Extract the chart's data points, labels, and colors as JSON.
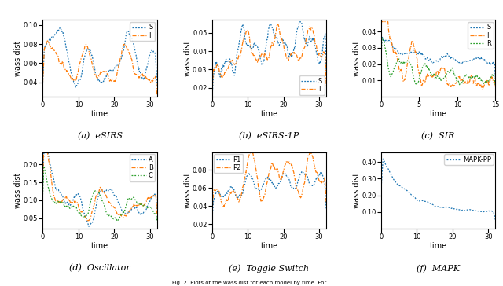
{
  "subplots": [
    {
      "label": "(a)  eSIRS",
      "xlabel": "time",
      "ylabel": "wass dist",
      "xlim": [
        0,
        32
      ],
      "ylim": [
        0.025,
        0.105
      ],
      "yticks": [
        0.04,
        0.06,
        0.08,
        0.1
      ],
      "xticks": [
        0,
        10,
        20,
        30
      ],
      "legend_loc": "upper right",
      "series": [
        {
          "name": "S",
          "color": "#1f77b4",
          "ls": "dotted"
        },
        {
          "name": "I",
          "color": "#ff7f0e",
          "ls": "dashdot"
        }
      ]
    },
    {
      "label": "(b)  eSIRS-1P",
      "xlabel": "time",
      "ylabel": "wass dist",
      "xlim": [
        0,
        32
      ],
      "ylim": [
        0.015,
        0.057
      ],
      "yticks": [
        0.02,
        0.03,
        0.04,
        0.05
      ],
      "xticks": [
        0,
        10,
        20,
        30
      ],
      "legend_loc": "lower right",
      "series": [
        {
          "name": "S",
          "color": "#1f77b4",
          "ls": "dotted"
        },
        {
          "name": "I",
          "color": "#ff7f0e",
          "ls": "dashdot"
        }
      ]
    },
    {
      "label": "(c)  SIR",
      "xlabel": "time",
      "ylabel": "wass dist",
      "xlim": [
        0,
        15
      ],
      "ylim": [
        0.0,
        0.047
      ],
      "yticks": [
        0.01,
        0.02,
        0.03,
        0.04
      ],
      "xticks": [
        0,
        5,
        10,
        15
      ],
      "legend_loc": "upper right",
      "series": [
        {
          "name": "S",
          "color": "#1f77b4",
          "ls": "dotted"
        },
        {
          "name": "I",
          "color": "#ff7f0e",
          "ls": "dashdot"
        },
        {
          "name": "R",
          "color": "#2ca02c",
          "ls": "dotted"
        }
      ]
    },
    {
      "label": "(d)  Oscillator",
      "xlabel": "time",
      "ylabel": "wass dist",
      "xlim": [
        0,
        32
      ],
      "ylim": [
        0.02,
        0.235
      ],
      "yticks": [
        0.05,
        0.1,
        0.15,
        0.2
      ],
      "xticks": [
        0,
        10,
        20,
        30
      ],
      "legend_loc": "upper right",
      "series": [
        {
          "name": "A",
          "color": "#1f77b4",
          "ls": "dotted"
        },
        {
          "name": "B",
          "color": "#ff7f0e",
          "ls": "dashdot"
        },
        {
          "name": "C",
          "color": "#2ca02c",
          "ls": "dotted"
        }
      ]
    },
    {
      "label": "(e)  Toggle Switch",
      "xlabel": "time",
      "ylabel": "wass dist",
      "xlim": [
        0,
        32
      ],
      "ylim": [
        0.015,
        0.1
      ],
      "yticks": [
        0.02,
        0.04,
        0.06,
        0.08
      ],
      "xticks": [
        0,
        10,
        20,
        30
      ],
      "legend_loc": "upper left",
      "series": [
        {
          "name": "P1",
          "color": "#1f77b4",
          "ls": "dotted"
        },
        {
          "name": "P2",
          "color": "#ff7f0e",
          "ls": "dashdot"
        }
      ]
    },
    {
      "label": "(f)  MAPK",
      "xlabel": "time",
      "ylabel": "wass dist",
      "xlim": [
        0,
        32
      ],
      "ylim": [
        0.0,
        0.46
      ],
      "yticks": [
        0.1,
        0.2,
        0.3,
        0.4
      ],
      "xticks": [
        0,
        10,
        20,
        30
      ],
      "legend_loc": "upper right",
      "series": [
        {
          "name": "MAPK-PP",
          "color": "#1f77b4",
          "ls": "dotted"
        }
      ]
    }
  ]
}
